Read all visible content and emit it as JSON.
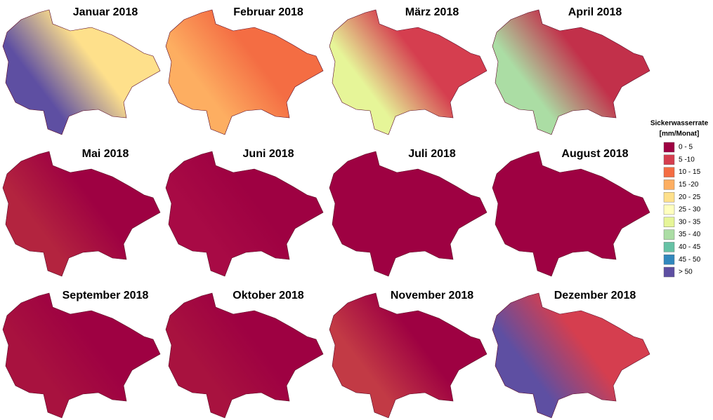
{
  "maps": [
    {
      "title": "Januar 2018",
      "colors": [
        "#5e4fa2",
        "#fee08b"
      ]
    },
    {
      "title": "Februar 2018",
      "colors": [
        "#fdae61",
        "#f46d43"
      ]
    },
    {
      "title": "März 2018",
      "colors": [
        "#e6f598",
        "#d53e4f"
      ]
    },
    {
      "title": "April 2018",
      "colors": [
        "#abdda4",
        "#c2304a"
      ]
    },
    {
      "title": "Mai 2018",
      "colors": [
        "#b3243f",
        "#9e0142"
      ]
    },
    {
      "title": "Juni 2018",
      "colors": [
        "#a80a45",
        "#9e0142"
      ]
    },
    {
      "title": "Juli 2018",
      "colors": [
        "#9e0142",
        "#9e0142"
      ]
    },
    {
      "title": "August 2018",
      "colors": [
        "#9e0142",
        "#9e0142"
      ]
    },
    {
      "title": "September 2018",
      "colors": [
        "#a8123f",
        "#9e0142"
      ]
    },
    {
      "title": "Oktober 2018",
      "colors": [
        "#a8123f",
        "#9e0142"
      ]
    },
    {
      "title": "November 2018",
      "colors": [
        "#c23a45",
        "#9e0142"
      ]
    },
    {
      "title": "Dezember 2018",
      "colors": [
        "#5e4fa2",
        "#d53e4f"
      ]
    }
  ],
  "legend": {
    "title": "Sickerwasserrate",
    "unit": "[mm/Monat]",
    "items": [
      {
        "label": "0 - 5",
        "color": "#9e0142"
      },
      {
        "label": "5 -10",
        "color": "#d53e4f"
      },
      {
        "label": "10 - 15",
        "color": "#f46d43"
      },
      {
        "label": "15 -20",
        "color": "#fdae61"
      },
      {
        "label": "20 - 25",
        "color": "#fee08b"
      },
      {
        "label": "25 - 30",
        "color": "#ffffbf"
      },
      {
        "label": "30 - 35",
        "color": "#e6f598"
      },
      {
        "label": "35 - 40",
        "color": "#abdda4"
      },
      {
        "label": "40 - 45",
        "color": "#66c2a5"
      },
      {
        "label": "45 - 50",
        "color": "#3288bd"
      },
      {
        "label": "> 50",
        "color": "#5e4fa2"
      }
    ]
  }
}
